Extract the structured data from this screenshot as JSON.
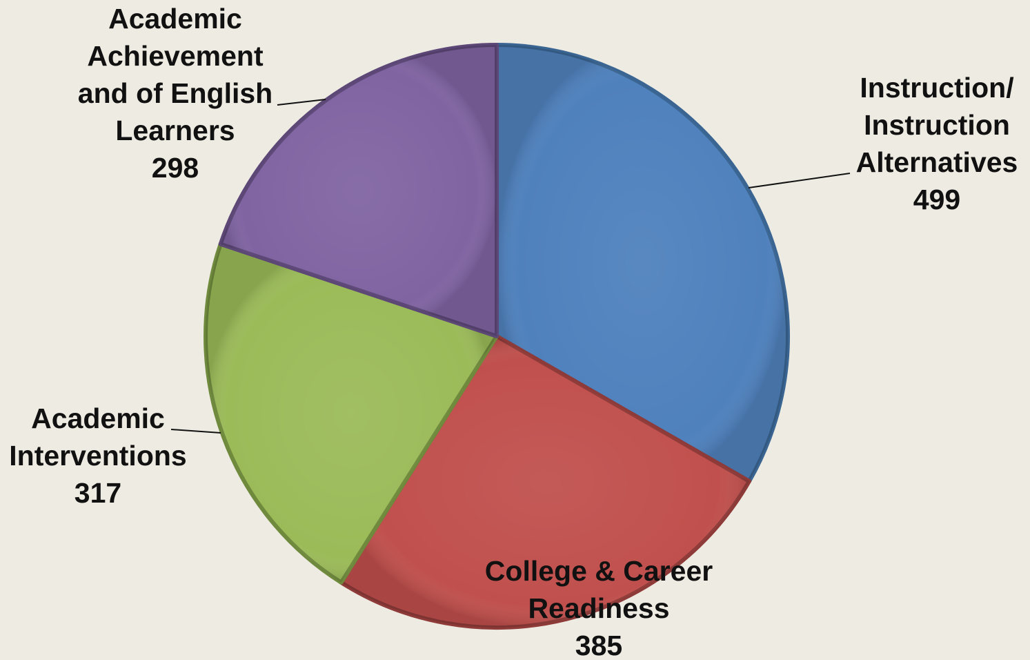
{
  "chart_data": {
    "type": "pie",
    "start_angle_deg": 0,
    "direction": "clockwise",
    "slices": [
      {
        "label_lines": [
          "Instruction/",
          "Instruction",
          "Alternatives"
        ],
        "value": 499,
        "value_text": "499",
        "color": "#4f81bd",
        "edge_color": "#3a6592"
      },
      {
        "label_lines": [
          "College & Career",
          "Readiness"
        ],
        "value": 385,
        "value_text": "385",
        "color": "#c0504d",
        "edge_color": "#8e3a38"
      },
      {
        "label_lines": [
          "Academic",
          "Interventions"
        ],
        "value": 317,
        "value_text": "317",
        "color": "#9bbb59",
        "edge_color": "#6f8a3c"
      },
      {
        "label_lines": [
          "Academic",
          "Achievement",
          "and of English",
          "Learners"
        ],
        "value": 298,
        "value_text": "298",
        "color": "#8064a2",
        "edge_color": "#5c4777"
      }
    ]
  }
}
